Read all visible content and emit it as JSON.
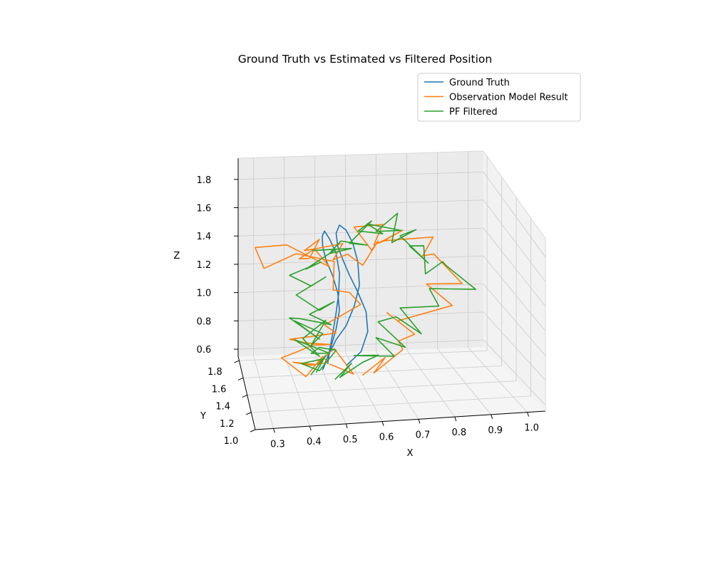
{
  "chart_data": {
    "type": "line",
    "projection": "3d",
    "title": "Ground Truth vs Estimated vs Filtered Position",
    "xlabel": "X",
    "ylabel": "Y",
    "zlabel": "Z",
    "xlim": [
      0.25,
      1.05
    ],
    "ylim": [
      1.0,
      1.85
    ],
    "zlim": [
      0.55,
      1.95
    ],
    "xticks": [
      "0.3",
      "0.4",
      "0.5",
      "0.6",
      "0.7",
      "0.8",
      "0.9",
      "1.0"
    ],
    "yticks": [
      "1.0",
      "1.2",
      "1.4",
      "1.6",
      "1.8"
    ],
    "zticks": [
      "0.6",
      "0.8",
      "1.0",
      "1.2",
      "1.4",
      "1.6",
      "1.8"
    ],
    "grid": true,
    "legend_position": "upper-right",
    "series": [
      {
        "name": "Ground Truth",
        "color": "#1f77b4",
        "x": [
          0.55,
          0.595,
          0.615,
          0.61,
          0.585,
          0.56,
          0.54,
          0.525,
          0.52,
          0.53,
          0.55,
          0.57,
          0.585,
          0.59,
          0.575,
          0.55,
          0.52,
          0.5,
          0.485,
          0.48,
          0.49,
          0.505,
          0.52,
          0.53,
          0.525,
          0.51,
          0.49,
          0.48,
          0.478,
          0.485,
          0.5,
          0.52,
          0.53,
          0.528,
          0.52,
          0.51,
          0.5,
          0.495
        ],
        "y": [
          1.45,
          1.45,
          1.45,
          1.45,
          1.45,
          1.45,
          1.45,
          1.45,
          1.45,
          1.45,
          1.45,
          1.45,
          1.45,
          1.45,
          1.45,
          1.45,
          1.45,
          1.45,
          1.45,
          1.45,
          1.45,
          1.45,
          1.45,
          1.45,
          1.45,
          1.45,
          1.45,
          1.45,
          1.45,
          1.45,
          1.45,
          1.45,
          1.45,
          1.45,
          1.45,
          1.45,
          1.45,
          1.45
        ],
        "z": [
          0.7,
          0.8,
          0.95,
          1.1,
          1.25,
          1.38,
          1.5,
          1.6,
          1.7,
          1.76,
          1.72,
          1.62,
          1.48,
          1.3,
          1.15,
          1.0,
          0.9,
          0.8,
          0.72,
          0.68,
          0.74,
          0.85,
          0.98,
          1.12,
          1.25,
          1.38,
          1.5,
          1.6,
          1.68,
          1.72,
          1.66,
          1.55,
          1.4,
          1.25,
          1.1,
          0.95,
          0.82,
          0.72
        ]
      },
      {
        "name": "Observation Model Result",
        "color": "#ff7f0e",
        "x": [
          0.58,
          0.66,
          0.62,
          0.72,
          0.7,
          0.74,
          0.68,
          0.72,
          0.86,
          0.8,
          0.88,
          0.84,
          0.78,
          0.82,
          0.68,
          0.64,
          0.72,
          0.68,
          0.62,
          0.66,
          0.58,
          0.62,
          0.66,
          0.6,
          0.56,
          0.5,
          0.54,
          0.46,
          0.42,
          0.48,
          0.44,
          0.4,
          0.46,
          0.5,
          0.38,
          0.28,
          0.3,
          0.4,
          0.52,
          0.5,
          0.56,
          0.6,
          0.54,
          0.48,
          0.52,
          0.46,
          0.42,
          0.38,
          0.44,
          0.5,
          0.46,
          0.4,
          0.36,
          0.42,
          0.48,
          0.5,
          0.44,
          0.4,
          0.46,
          0.52,
          0.56,
          0.5
        ],
        "y": [
          1.3,
          1.4,
          1.35,
          1.45,
          1.4,
          1.35,
          1.5,
          1.55,
          1.4,
          1.5,
          1.35,
          1.6,
          1.45,
          1.5,
          1.55,
          1.4,
          1.45,
          1.5,
          1.35,
          1.45,
          1.5,
          1.4,
          1.55,
          1.45,
          1.5,
          1.35,
          1.45,
          1.5,
          1.4,
          1.55,
          1.45,
          1.35,
          1.5,
          1.45,
          1.55,
          1.5,
          1.4,
          1.45,
          1.5,
          1.35,
          1.45,
          1.5,
          1.55,
          1.4,
          1.45,
          1.5,
          1.35,
          1.45,
          1.5,
          1.4,
          1.55,
          1.45,
          1.5,
          1.35,
          1.45,
          1.5,
          1.4,
          1.55,
          1.45,
          1.5,
          1.35,
          1.45
        ],
        "z": [
          0.72,
          0.78,
          0.7,
          0.8,
          0.9,
          0.98,
          1.05,
          0.95,
          1.15,
          1.25,
          1.35,
          1.4,
          1.5,
          1.6,
          1.55,
          1.65,
          1.7,
          1.6,
          1.68,
          1.75,
          1.7,
          1.6,
          1.55,
          1.45,
          1.5,
          1.58,
          1.62,
          1.55,
          1.62,
          1.58,
          1.52,
          1.6,
          1.55,
          1.45,
          1.55,
          1.58,
          1.5,
          1.56,
          1.45,
          1.35,
          1.25,
          1.12,
          1.0,
          1.05,
          0.95,
          0.9,
          1.0,
          0.92,
          0.85,
          0.9,
          0.8,
          0.82,
          0.75,
          0.7,
          0.78,
          0.7,
          0.75,
          0.68,
          0.72,
          0.8,
          0.7,
          0.72
        ]
      },
      {
        "name": "PF Filtered",
        "color": "#2ca02c",
        "x": [
          0.5,
          0.56,
          0.52,
          0.6,
          0.64,
          0.58,
          0.68,
          0.64,
          0.72,
          0.66,
          0.7,
          0.76,
          0.72,
          0.82,
          0.8,
          0.92,
          0.86,
          0.84,
          0.78,
          0.8,
          0.74,
          0.78,
          0.72,
          0.76,
          0.68,
          0.72,
          0.64,
          0.7,
          0.62,
          0.66,
          0.58,
          0.64,
          0.56,
          0.6,
          0.54,
          0.5,
          0.56,
          0.46,
          0.52,
          0.42,
          0.48,
          0.38,
          0.44,
          0.5,
          0.4,
          0.46,
          0.52,
          0.44,
          0.5,
          0.42,
          0.38,
          0.46,
          0.4,
          0.48,
          0.44,
          0.5,
          0.42,
          0.46,
          0.4,
          0.5,
          0.44,
          0.48,
          0.52,
          0.46,
          0.42,
          0.48,
          0.44,
          0.5,
          0.46
        ],
        "y": [
          1.3,
          1.4,
          1.35,
          1.45,
          1.4,
          1.5,
          1.35,
          1.45,
          1.4,
          1.55,
          1.45,
          1.35,
          1.5,
          1.4,
          1.45,
          1.35,
          1.5,
          1.45,
          1.4,
          1.55,
          1.45,
          1.35,
          1.5,
          1.45,
          1.4,
          1.55,
          1.45,
          1.35,
          1.5,
          1.45,
          1.4,
          1.55,
          1.45,
          1.35,
          1.5,
          1.45,
          1.4,
          1.55,
          1.45,
          1.35,
          1.5,
          1.45,
          1.4,
          1.55,
          1.45,
          1.35,
          1.5,
          1.45,
          1.4,
          1.55,
          1.45,
          1.35,
          1.5,
          1.45,
          1.4,
          1.55,
          1.45,
          1.35,
          1.5,
          1.45,
          1.4,
          1.55,
          1.45,
          1.35,
          1.5,
          1.45,
          1.4,
          1.55,
          1.45
        ],
        "z": [
          0.7,
          0.75,
          0.68,
          0.72,
          0.8,
          0.74,
          0.82,
          0.9,
          0.85,
          0.95,
          1.05,
          0.98,
          1.08,
          1.15,
          1.25,
          1.3,
          1.38,
          1.45,
          1.4,
          1.5,
          1.58,
          1.52,
          1.62,
          1.7,
          1.65,
          1.75,
          1.7,
          1.78,
          1.72,
          1.68,
          1.75,
          1.7,
          1.62,
          1.68,
          1.6,
          1.55,
          1.62,
          1.5,
          1.58,
          1.52,
          1.45,
          1.4,
          1.35,
          1.3,
          1.25,
          1.2,
          1.15,
          1.1,
          1.05,
          1.0,
          1.08,
          0.98,
          1.02,
          0.95,
          0.9,
          0.98,
          0.92,
          0.85,
          0.88,
          0.8,
          0.84,
          0.78,
          0.82,
          0.74,
          0.7,
          0.76,
          0.68,
          0.72,
          0.66
        ]
      }
    ]
  }
}
